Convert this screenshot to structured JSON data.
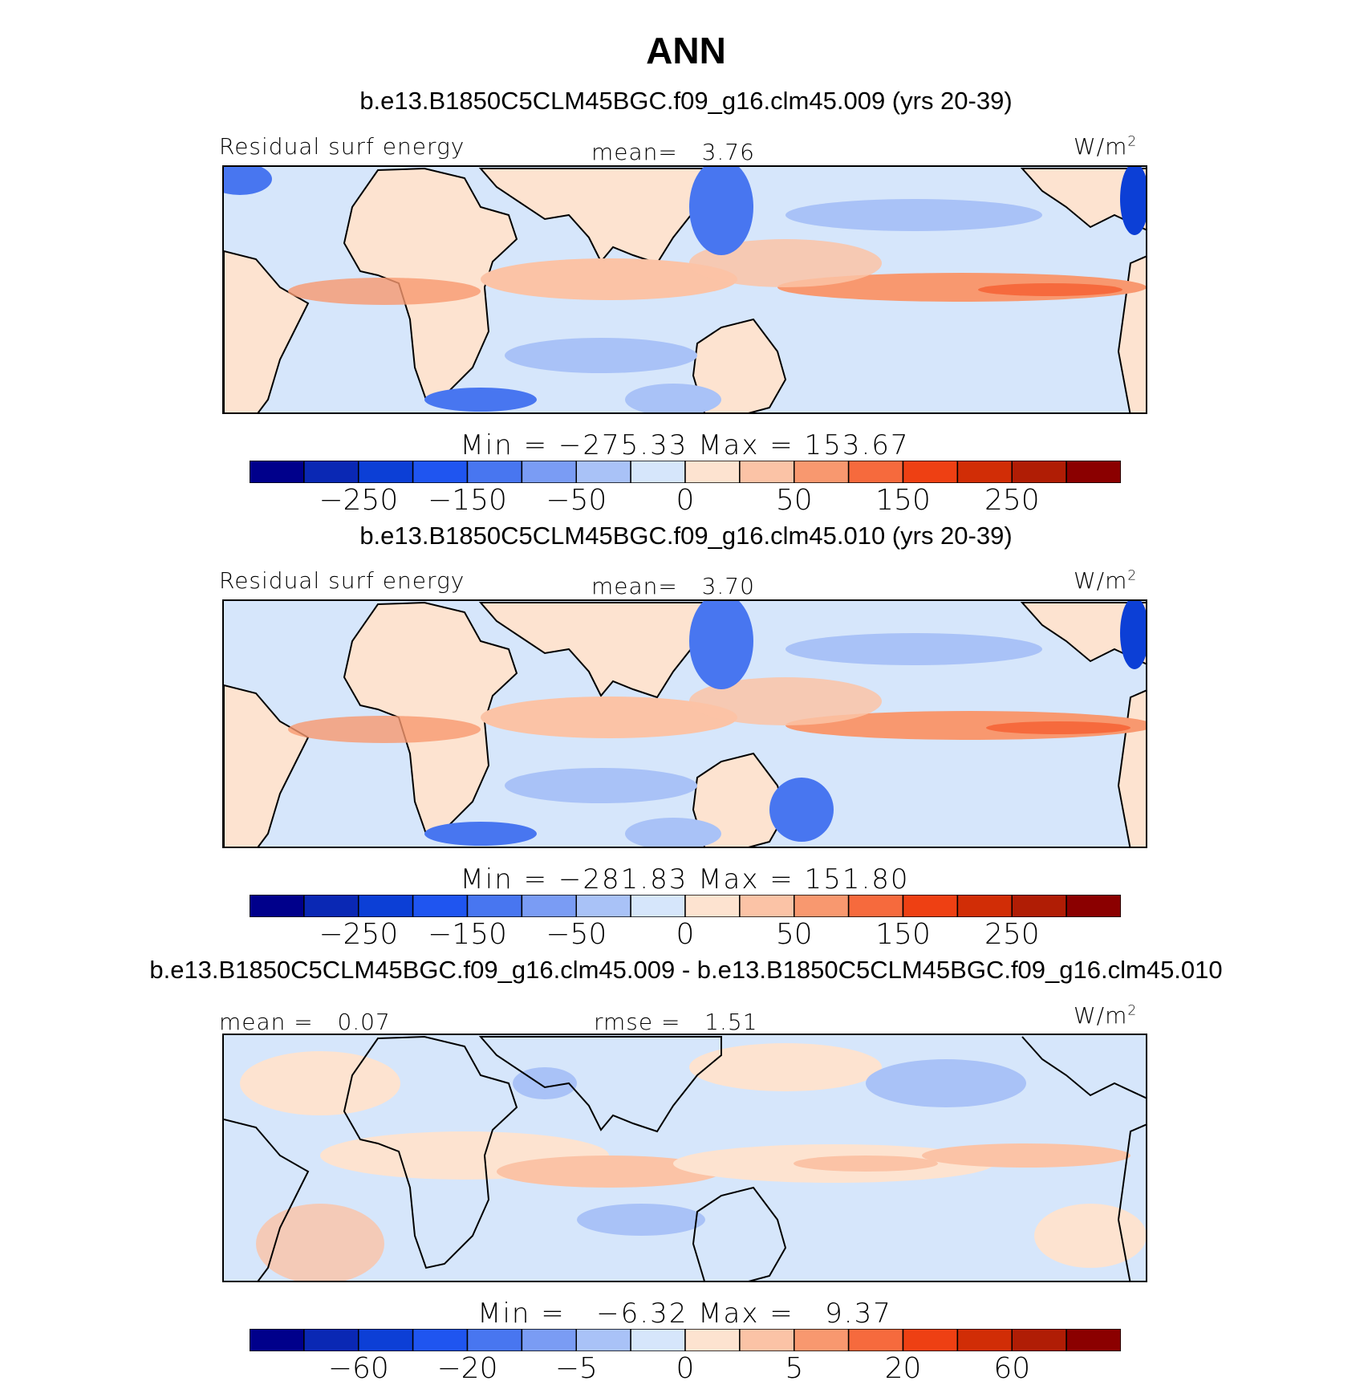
{
  "figure": {
    "title": "ANN"
  },
  "panels": [
    {
      "subtitle": "b.e13.B1850C5CLM45BGC.f09_g16.clm45.009 (yrs 20-39)",
      "left_label": "Residual surf energy",
      "center_label": "mean=   3.76",
      "units": "W/m",
      "units_sup": "2",
      "minmax": "Min = −275.33 Max = 153.67",
      "colorbar": {
        "labels": [
          "−250",
          "−150",
          "−50",
          "0",
          "50",
          "150",
          "250"
        ]
      }
    },
    {
      "subtitle": "b.e13.B1850C5CLM45BGC.f09_g16.clm45.010 (yrs 20-39)",
      "left_label": "Residual surf energy",
      "center_label": "mean=   3.70",
      "units": "W/m",
      "units_sup": "2",
      "minmax": "Min = −281.83 Max = 151.80",
      "colorbar": {
        "labels": [
          "−250",
          "−150",
          "−50",
          "0",
          "50",
          "150",
          "250"
        ]
      }
    },
    {
      "subtitle": "b.e13.B1850C5CLM45BGC.f09_g16.clm45.009 - b.e13.B1850C5CLM45BGC.f09_g16.clm45.010",
      "left_label": "mean =   0.07",
      "center_label": "rmse =   1.51",
      "units": "W/m",
      "units_sup": "2",
      "minmax": "Min =   −6.32 Max =   9.37",
      "colorbar": {
        "labels": [
          "−60",
          "−20",
          "−5",
          "0",
          "5",
          "20",
          "60"
        ]
      }
    }
  ],
  "colorbar_colors": [
    "#00008b",
    "#0a28b4",
    "#0c3fd6",
    "#1f55f0",
    "#4876f0",
    "#7a9cf4",
    "#a9c2f7",
    "#d6e6fb",
    "#fde3d0",
    "#fbc3a6",
    "#f8986f",
    "#f66a3d",
    "#ee4013",
    "#d12d06",
    "#b01d05",
    "#8b0000"
  ]
}
